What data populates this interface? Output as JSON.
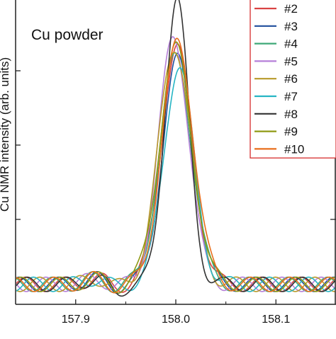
{
  "chart_data": {
    "type": "line",
    "title": "Cu powder",
    "xlabel": "",
    "ylabel": "Cu NMR intensity (arb. units)",
    "xlim": [
      157.84,
      158.16
    ],
    "ylim": [
      0,
      1.0
    ],
    "x_ticks": [
      157.9,
      158.0,
      158.1
    ],
    "x_tick_labels": [
      "157.9",
      "158.0",
      "158.1"
    ],
    "legend_position": "top-right",
    "grid": false,
    "series": [
      {
        "name": "#2",
        "color": "#d94343",
        "peak": 0.82,
        "width": 0.0155,
        "center": 158.001
      },
      {
        "name": "#3",
        "color": "#1f4e9c",
        "peak": 0.78,
        "width": 0.0152,
        "center": 158.002
      },
      {
        "name": "#4",
        "color": "#3fa878",
        "peak": 0.79,
        "width": 0.0158,
        "center": 158.0
      },
      {
        "name": "#5",
        "color": "#b57fd8",
        "peak": 0.86,
        "width": 0.015,
        "center": 157.998
      },
      {
        "name": "#6",
        "color": "#b89a2a",
        "peak": 0.83,
        "width": 0.016,
        "center": 157.999
      },
      {
        "name": "#7",
        "color": "#26b5c4",
        "peak": 0.76,
        "width": 0.0148,
        "center": 158.003
      },
      {
        "name": "#8",
        "color": "#333333",
        "peak": 0.99,
        "width": 0.012,
        "center": 158.001
      },
      {
        "name": "#9",
        "color": "#8f9a14",
        "peak": 0.82,
        "width": 0.0162,
        "center": 158.0
      },
      {
        "name": "#10",
        "color": "#e86e1c",
        "peak": 0.84,
        "width": 0.0157,
        "center": 158.002
      }
    ]
  }
}
